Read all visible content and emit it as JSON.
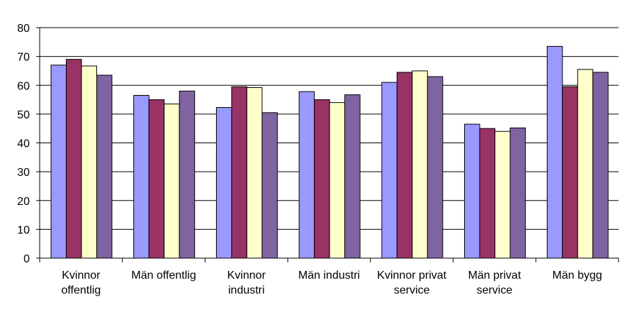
{
  "chart_data": {
    "type": "bar",
    "title": "",
    "xlabel": "",
    "ylabel": "",
    "ylim": [
      0,
      80
    ],
    "yticks": [
      0,
      10,
      20,
      30,
      40,
      50,
      60,
      70,
      80
    ],
    "grid": "horizontal",
    "legend": "none",
    "categories": [
      [
        "Kvinnor",
        "offentlig"
      ],
      [
        "Män offentlig"
      ],
      [
        "Kvinnor",
        "industri"
      ],
      [
        "Män industri"
      ],
      [
        "Kvinnor privat",
        "service"
      ],
      [
        "Män privat",
        "service"
      ],
      [
        "Män bygg"
      ]
    ],
    "series": [
      {
        "color": "#9999ff",
        "values": [
          67,
          56.5,
          52.3,
          57.8,
          61,
          46.5,
          73.5
        ]
      },
      {
        "color": "#993366",
        "values": [
          69,
          55,
          59.5,
          55,
          64.5,
          45,
          59.5
        ]
      },
      {
        "color": "#ffffcc",
        "values": [
          66.7,
          53.5,
          59.2,
          54,
          65,
          44,
          65.5
        ]
      },
      {
        "color": "#8064a2",
        "values": [
          63.5,
          58,
          50.5,
          56.7,
          63,
          45.2,
          64.5
        ]
      }
    ]
  }
}
